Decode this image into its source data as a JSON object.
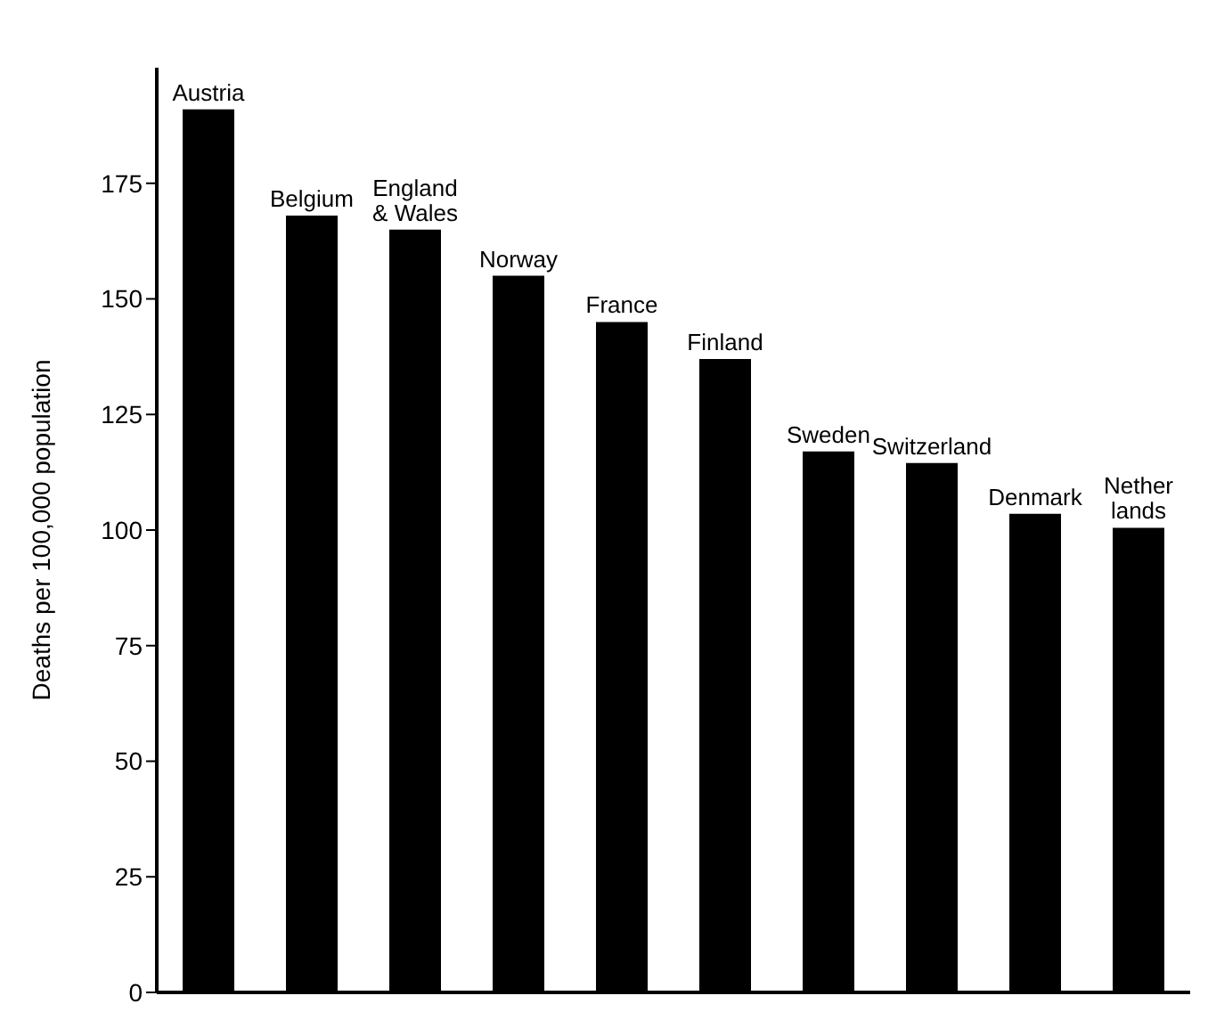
{
  "chart_data": {
    "type": "bar",
    "ylabel": "Deaths per 100,000 population",
    "categories": [
      "Austria",
      "Belgium",
      "England\n& Wales",
      "Norway",
      "France",
      "Finland",
      "Sweden",
      "Switzerland",
      "Denmark",
      "Nether\nlands"
    ],
    "values": [
      191,
      168,
      165,
      155,
      145,
      137,
      117,
      114.5,
      103.5,
      100.5
    ],
    "color": "#000000",
    "ylim": [
      0,
      200
    ],
    "yticks": [
      0,
      25,
      50,
      75,
      100,
      125,
      150,
      175
    ],
    "grid": false
  }
}
